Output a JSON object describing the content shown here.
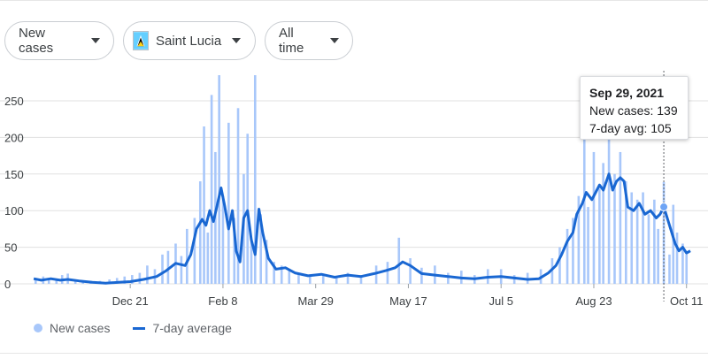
{
  "filters": {
    "metric": "New cases",
    "location": "Saint Lucia",
    "range": "All time"
  },
  "tooltip": {
    "date": "Sep 29, 2021",
    "new_cases_line": "New cases: 139",
    "avg_line": "7-day avg: 105"
  },
  "legend": {
    "new_cases": "New cases",
    "avg": "7-day average"
  },
  "colors": {
    "bars": "#a8c7fa",
    "line": "#1967d2",
    "grid": "#e0e0e0"
  },
  "chart_data": {
    "type": "bar",
    "title": "",
    "xlabel": "",
    "ylabel": "",
    "ylim": [
      0,
      285
    ],
    "y_ticks": [
      0,
      50,
      100,
      150,
      200,
      250
    ],
    "x_ticks": [
      "Dec 21",
      "Feb 8",
      "Mar 29",
      "May 17",
      "Jul 5",
      "Aug 23",
      "Oct 11"
    ],
    "x_range": [
      "Oct 30, 2020",
      "Oct 13, 2021"
    ],
    "highlight": {
      "date": "Sep 29, 2021",
      "new_cases": 139,
      "avg": 105
    },
    "series": [
      {
        "name": "New cases",
        "type": "bar",
        "points": [
          {
            "date": "Nov 1",
            "value": 8
          },
          {
            "date": "Nov 5",
            "value": 10
          },
          {
            "date": "Nov 8",
            "value": 5
          },
          {
            "date": "Nov 12",
            "value": 6
          },
          {
            "date": "Nov 15",
            "value": 12
          },
          {
            "date": "Nov 18",
            "value": 14
          },
          {
            "date": "Nov 22",
            "value": 5
          },
          {
            "date": "Nov 26",
            "value": 4
          },
          {
            "date": "Nov 30",
            "value": 3
          },
          {
            "date": "Dec 5",
            "value": 4
          },
          {
            "date": "Dec 10",
            "value": 6
          },
          {
            "date": "Dec 14",
            "value": 8
          },
          {
            "date": "Dec 18",
            "value": 10
          },
          {
            "date": "Dec 22",
            "value": 12
          },
          {
            "date": "Dec 26",
            "value": 15
          },
          {
            "date": "Dec 30",
            "value": 25
          },
          {
            "date": "Jan 3",
            "value": 20
          },
          {
            "date": "Jan 7",
            "value": 40
          },
          {
            "date": "Jan 10",
            "value": 45
          },
          {
            "date": "Jan 14",
            "value": 55
          },
          {
            "date": "Jan 17",
            "value": 38
          },
          {
            "date": "Jan 20",
            "value": 75
          },
          {
            "date": "Jan 24",
            "value": 90
          },
          {
            "date": "Jan 27",
            "value": 140
          },
          {
            "date": "Jan 29",
            "value": 215
          },
          {
            "date": "Jan 31",
            "value": 70
          },
          {
            "date": "Feb 2",
            "value": 258
          },
          {
            "date": "Feb 4",
            "value": 180
          },
          {
            "date": "Feb 6",
            "value": 285
          },
          {
            "date": "Feb 8",
            "value": 120
          },
          {
            "date": "Feb 11",
            "value": 220
          },
          {
            "date": "Feb 14",
            "value": 90
          },
          {
            "date": "Feb 16",
            "value": 240
          },
          {
            "date": "Feb 19",
            "value": 150
          },
          {
            "date": "Feb 21",
            "value": 205
          },
          {
            "date": "Feb 23",
            "value": 60
          },
          {
            "date": "Feb 25",
            "value": 285
          },
          {
            "date": "Feb 28",
            "value": 95
          },
          {
            "date": "Mar 3",
            "value": 60
          },
          {
            "date": "Mar 7",
            "value": 30
          },
          {
            "date": "Mar 11",
            "value": 25
          },
          {
            "date": "Mar 15",
            "value": 20
          },
          {
            "date": "Mar 20",
            "value": 15
          },
          {
            "date": "Mar 26",
            "value": 12
          },
          {
            "date": "Apr 2",
            "value": 14
          },
          {
            "date": "Apr 9",
            "value": 10
          },
          {
            "date": "Apr 15",
            "value": 15
          },
          {
            "date": "Apr 22",
            "value": 12
          },
          {
            "date": "Apr 30",
            "value": 25
          },
          {
            "date": "May 6",
            "value": 30
          },
          {
            "date": "May 12",
            "value": 63
          },
          {
            "date": "May 18",
            "value": 35
          },
          {
            "date": "May 24",
            "value": 22
          },
          {
            "date": "May 31",
            "value": 25
          },
          {
            "date": "Jun 7",
            "value": 15
          },
          {
            "date": "Jun 14",
            "value": 18
          },
          {
            "date": "Jun 21",
            "value": 12
          },
          {
            "date": "Jun 28",
            "value": 20
          },
          {
            "date": "Jul 5",
            "value": 20
          },
          {
            "date": "Jul 12",
            "value": 12
          },
          {
            "date": "Jul 19",
            "value": 15
          },
          {
            "date": "Jul 26",
            "value": 20
          },
          {
            "date": "Aug 1",
            "value": 35
          },
          {
            "date": "Aug 5",
            "value": 50
          },
          {
            "date": "Aug 9",
            "value": 75
          },
          {
            "date": "Aug 12",
            "value": 90
          },
          {
            "date": "Aug 15",
            "value": 120
          },
          {
            "date": "Aug 18",
            "value": 200
          },
          {
            "date": "Aug 20",
            "value": 105
          },
          {
            "date": "Aug 23",
            "value": 180
          },
          {
            "date": "Aug 26",
            "value": 130
          },
          {
            "date": "Aug 28",
            "value": 165
          },
          {
            "date": "Aug 31",
            "value": 200
          },
          {
            "date": "Sep 3",
            "value": 150
          },
          {
            "date": "Sep 6",
            "value": 180
          },
          {
            "date": "Sep 9",
            "value": 140
          },
          {
            "date": "Sep 12",
            "value": 125
          },
          {
            "date": "Sep 15",
            "value": 115
          },
          {
            "date": "Sep 18",
            "value": 125
          },
          {
            "date": "Sep 21",
            "value": 95
          },
          {
            "date": "Sep 24",
            "value": 115
          },
          {
            "date": "Sep 26",
            "value": 75
          },
          {
            "date": "Sep 29",
            "value": 139
          },
          {
            "date": "Oct 2",
            "value": 40
          },
          {
            "date": "Oct 4",
            "value": 108
          },
          {
            "date": "Oct 6",
            "value": 70
          },
          {
            "date": "Oct 9",
            "value": 55
          },
          {
            "date": "Oct 11",
            "value": 40
          }
        ]
      },
      {
        "name": "7-day average",
        "type": "line",
        "points": [
          {
            "date": "Oct 31",
            "value": 7
          },
          {
            "date": "Nov 4",
            "value": 5
          },
          {
            "date": "Nov 9",
            "value": 7
          },
          {
            "date": "Nov 14",
            "value": 5
          },
          {
            "date": "Nov 18",
            "value": 6
          },
          {
            "date": "Nov 24",
            "value": 4
          },
          {
            "date": "Dec 1",
            "value": 2
          },
          {
            "date": "Dec 8",
            "value": 1
          },
          {
            "date": "Dec 15",
            "value": 2
          },
          {
            "date": "Dec 21",
            "value": 3
          },
          {
            "date": "Dec 28",
            "value": 6
          },
          {
            "date": "Jan 4",
            "value": 10
          },
          {
            "date": "Jan 9",
            "value": 18
          },
          {
            "date": "Jan 14",
            "value": 28
          },
          {
            "date": "Jan 19",
            "value": 25
          },
          {
            "date": "Jan 22",
            "value": 40
          },
          {
            "date": "Jan 25",
            "value": 75
          },
          {
            "date": "Jan 28",
            "value": 88
          },
          {
            "date": "Jan 30",
            "value": 80
          },
          {
            "date": "Feb 1",
            "value": 100
          },
          {
            "date": "Feb 3",
            "value": 85
          },
          {
            "date": "Feb 5",
            "value": 108
          },
          {
            "date": "Feb 7",
            "value": 131
          },
          {
            "date": "Feb 9",
            "value": 105
          },
          {
            "date": "Feb 11",
            "value": 75
          },
          {
            "date": "Feb 13",
            "value": 100
          },
          {
            "date": "Feb 15",
            "value": 45
          },
          {
            "date": "Feb 17",
            "value": 30
          },
          {
            "date": "Feb 19",
            "value": 90
          },
          {
            "date": "Feb 21",
            "value": 100
          },
          {
            "date": "Feb 23",
            "value": 60
          },
          {
            "date": "Feb 25",
            "value": 40
          },
          {
            "date": "Feb 27",
            "value": 102
          },
          {
            "date": "Mar 1",
            "value": 70
          },
          {
            "date": "Mar 4",
            "value": 35
          },
          {
            "date": "Mar 8",
            "value": 20
          },
          {
            "date": "Mar 13",
            "value": 22
          },
          {
            "date": "Mar 18",
            "value": 15
          },
          {
            "date": "Mar 25",
            "value": 11
          },
          {
            "date": "Apr 1",
            "value": 13
          },
          {
            "date": "Apr 8",
            "value": 9
          },
          {
            "date": "Apr 15",
            "value": 12
          },
          {
            "date": "Apr 22",
            "value": 10
          },
          {
            "date": "Apr 29",
            "value": 14
          },
          {
            "date": "May 5",
            "value": 18
          },
          {
            "date": "May 10",
            "value": 22
          },
          {
            "date": "May 14",
            "value": 30
          },
          {
            "date": "May 18",
            "value": 25
          },
          {
            "date": "May 24",
            "value": 14
          },
          {
            "date": "May 31",
            "value": 12
          },
          {
            "date": "Jun 7",
            "value": 10
          },
          {
            "date": "Jun 14",
            "value": 8
          },
          {
            "date": "Jun 21",
            "value": 7
          },
          {
            "date": "Jun 28",
            "value": 9
          },
          {
            "date": "Jul 5",
            "value": 10
          },
          {
            "date": "Jul 12",
            "value": 8
          },
          {
            "date": "Jul 19",
            "value": 6
          },
          {
            "date": "Jul 25",
            "value": 7
          },
          {
            "date": "Jul 30",
            "value": 15
          },
          {
            "date": "Aug 3",
            "value": 25
          },
          {
            "date": "Aug 6",
            "value": 40
          },
          {
            "date": "Aug 9",
            "value": 58
          },
          {
            "date": "Aug 12",
            "value": 70
          },
          {
            "date": "Aug 14",
            "value": 95
          },
          {
            "date": "Aug 17",
            "value": 110
          },
          {
            "date": "Aug 19",
            "value": 125
          },
          {
            "date": "Aug 22",
            "value": 115
          },
          {
            "date": "Aug 24",
            "value": 125
          },
          {
            "date": "Aug 26",
            "value": 135
          },
          {
            "date": "Aug 28",
            "value": 128
          },
          {
            "date": "Aug 31",
            "value": 150
          },
          {
            "date": "Sep 2",
            "value": 128
          },
          {
            "date": "Sep 4",
            "value": 140
          },
          {
            "date": "Sep 6",
            "value": 145
          },
          {
            "date": "Sep 8",
            "value": 140
          },
          {
            "date": "Sep 10",
            "value": 105
          },
          {
            "date": "Sep 13",
            "value": 100
          },
          {
            "date": "Sep 16",
            "value": 110
          },
          {
            "date": "Sep 19",
            "value": 95
          },
          {
            "date": "Sep 22",
            "value": 100
          },
          {
            "date": "Sep 25",
            "value": 90
          },
          {
            "date": "Sep 27",
            "value": 95
          },
          {
            "date": "Sep 29",
            "value": 105
          },
          {
            "date": "Oct 2",
            "value": 80
          },
          {
            "date": "Oct 5",
            "value": 55
          },
          {
            "date": "Oct 7",
            "value": 45
          },
          {
            "date": "Oct 9",
            "value": 50
          },
          {
            "date": "Oct 11",
            "value": 42
          },
          {
            "date": "Oct 13",
            "value": 45
          }
        ]
      }
    ]
  }
}
